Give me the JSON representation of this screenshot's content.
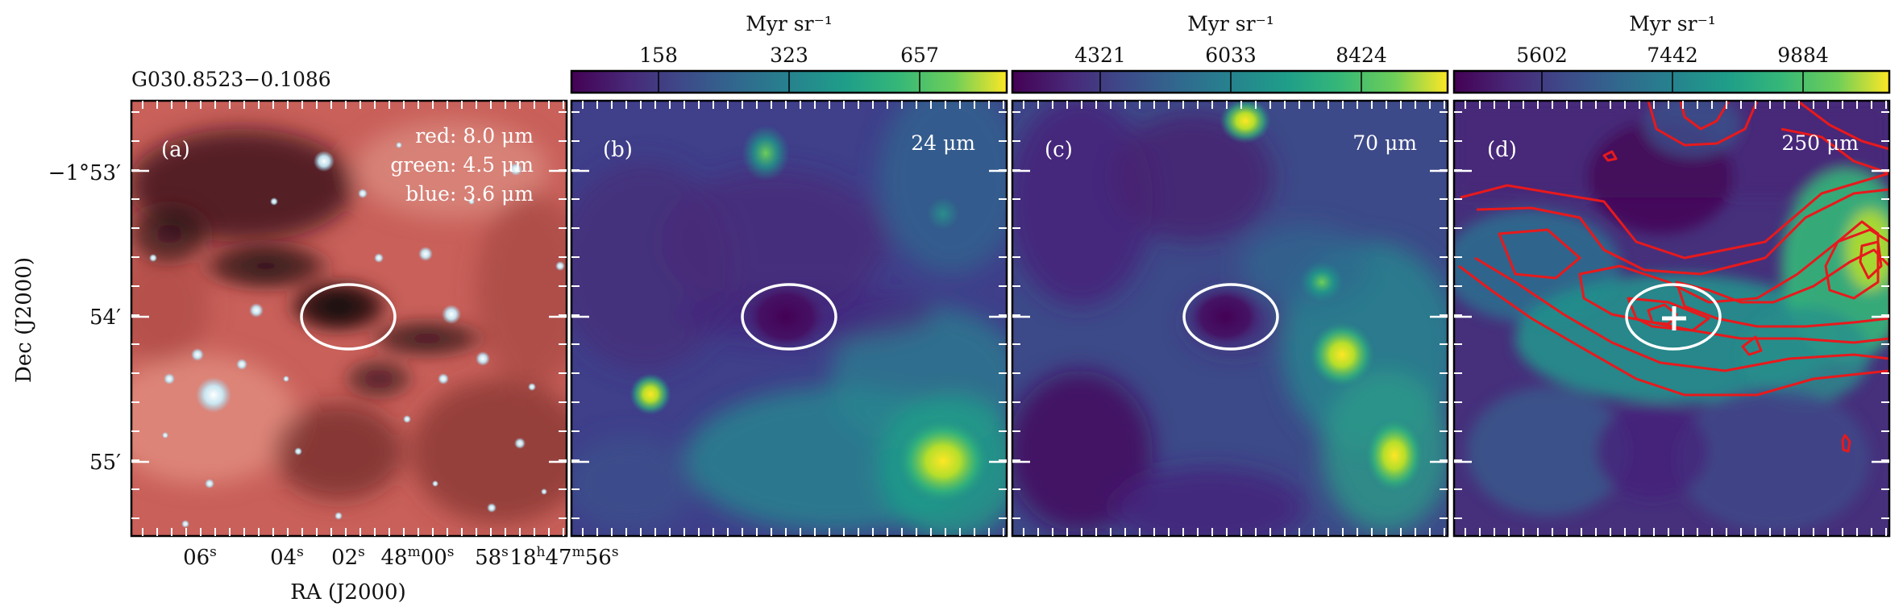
{
  "figure": {
    "source_name": "G030.8523−0.1086",
    "y_axis_label": "Dec (J2000)",
    "x_axis_label": "RA (J2000)",
    "y_ticks": [
      "−1°53′",
      "54′",
      "55′"
    ],
    "x_ticks": [
      {
        "main": "06",
        "sup": "s"
      },
      {
        "main": "04",
        "sup": "s"
      },
      {
        "main": "02",
        "sup": "s"
      },
      {
        "main": "48",
        "sup": "m",
        "main2": "00",
        "sup2": "s"
      },
      {
        "main": "58",
        "sup": "s"
      },
      {
        "main": "18",
        "sup": "h",
        "main2": "47",
        "sup2": "m",
        "main3": "56",
        "sup3": "s"
      }
    ]
  },
  "panels": [
    {
      "id": "a",
      "label": "(a)",
      "type": "rgb",
      "channels": [
        "red: 8.0 μm",
        "green: 4.5 μm",
        "blue: 3.6 μm"
      ]
    },
    {
      "id": "b",
      "label": "(b)",
      "wavelength": "24 μm",
      "colorbar_unit": "Myr sr⁻¹",
      "colorbar_ticks": [
        "158",
        "323",
        "657"
      ]
    },
    {
      "id": "c",
      "label": "(c)",
      "wavelength": "70 μm",
      "colorbar_unit": "Myr sr⁻¹",
      "colorbar_ticks": [
        "4321",
        "6033",
        "8424"
      ]
    },
    {
      "id": "d",
      "label": "(d)",
      "wavelength": "250 μm",
      "colorbar_unit": "Myr sr⁻¹",
      "colorbar_ticks": [
        "5602",
        "7442",
        "9884"
      ]
    }
  ],
  "colors": {
    "viridis_low": "#440154",
    "viridis_mid": "#21918c",
    "viridis_high": "#fde725",
    "contour": "#e8191c",
    "ellipse": "#ffffff",
    "rgb_base": "#c9605a"
  }
}
